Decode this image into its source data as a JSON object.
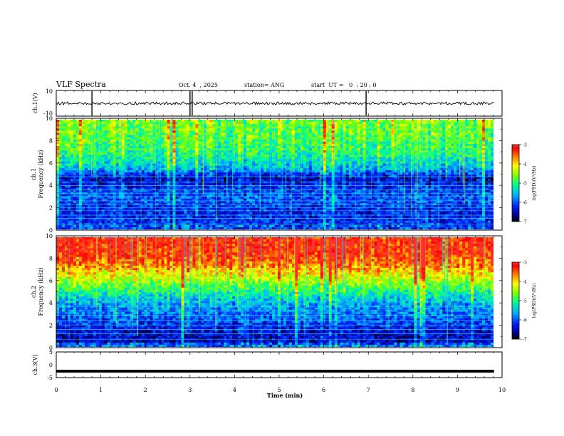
{
  "header": {
    "title": "VLF Spectra",
    "date": "Oct. 4  , 2025",
    "station": "station= ANG",
    "start": "start  UT =   0  : 20 : 0"
  },
  "chart_data": [
    {
      "type": "line",
      "panel": "ch1-waveform",
      "ylabel": "ch.1(V)",
      "ylim": [
        -10,
        10
      ],
      "yticks": [
        "10",
        "-10"
      ],
      "xlim": [
        0,
        10
      ],
      "baseline": 0,
      "spikes_min": [
        0.8,
        3.0,
        3.05,
        6.95
      ]
    },
    {
      "type": "heatmap",
      "panel": "ch1-spectrogram",
      "ylabel_lines": [
        "ch.1",
        "Frequency (kHz)"
      ],
      "ylim": [
        0,
        10
      ],
      "yticks": [
        "0",
        "2",
        "4",
        "6",
        "8",
        "10"
      ],
      "xlim": [
        0,
        9.85
      ],
      "colorbar": {
        "ticks": [
          "-3",
          "-4",
          "-5",
          "-6",
          "-7"
        ],
        "range": [
          -7,
          -3
        ],
        "label": "log(PSD)(V²/Hz)"
      },
      "level_profile": [
        [
          0,
          -6.4
        ],
        [
          0.5,
          -6.2
        ],
        [
          1.5,
          -6.3
        ],
        [
          3,
          -6.0
        ],
        [
          4.7,
          -6.5
        ],
        [
          5.5,
          -5.6
        ],
        [
          7,
          -5.0
        ],
        [
          8.5,
          -4.8
        ],
        [
          10,
          -4.6
        ]
      ],
      "line_kHz": [
        0.5,
        1.0,
        1.3,
        1.7,
        2.0,
        2.3,
        2.6,
        3.0,
        3.3,
        3.6,
        4.0,
        4.3,
        4.8
      ]
    },
    {
      "type": "heatmap",
      "panel": "ch2-spectrogram",
      "ylabel_lines": [
        "ch.2",
        "Frequency (kHz)"
      ],
      "ylim": [
        0,
        10
      ],
      "yticks": [
        "0",
        "2",
        "4",
        "6",
        "8",
        "10"
      ],
      "xlim": [
        0,
        9.85
      ],
      "colorbar": {
        "ticks": [
          "-3",
          "-4",
          "-5",
          "-6",
          "-7"
        ],
        "range": [
          -7,
          -3
        ],
        "label": "log(PSD)(V²/Hz)"
      },
      "level_profile": [
        [
          0,
          -6.0
        ],
        [
          0.5,
          -6.5
        ],
        [
          1.5,
          -6.4
        ],
        [
          2.5,
          -6.0
        ],
        [
          3.5,
          -5.8
        ],
        [
          4.5,
          -5.4
        ],
        [
          5.5,
          -4.8
        ],
        [
          6.5,
          -4.2
        ],
        [
          7.5,
          -3.6
        ],
        [
          8.5,
          -3.3
        ],
        [
          10,
          -3.2
        ]
      ],
      "line_kHz": [
        0.7,
        1.2,
        1.6,
        2.0,
        2.4,
        2.9,
        3.3,
        3.7,
        4.2
      ]
    },
    {
      "type": "line",
      "panel": "ch3-waveform",
      "ylabel": "ch.3(V)",
      "ylim": [
        -5,
        5
      ],
      "yticks": [
        "5",
        "0",
        "-5"
      ],
      "xlim": [
        0,
        10
      ],
      "baseline": -2.5,
      "xlabel": "Time (min)",
      "xticks": [
        "0",
        "1",
        "2",
        "3",
        "4",
        "5",
        "6",
        "7",
        "8",
        "9",
        "10"
      ]
    }
  ]
}
